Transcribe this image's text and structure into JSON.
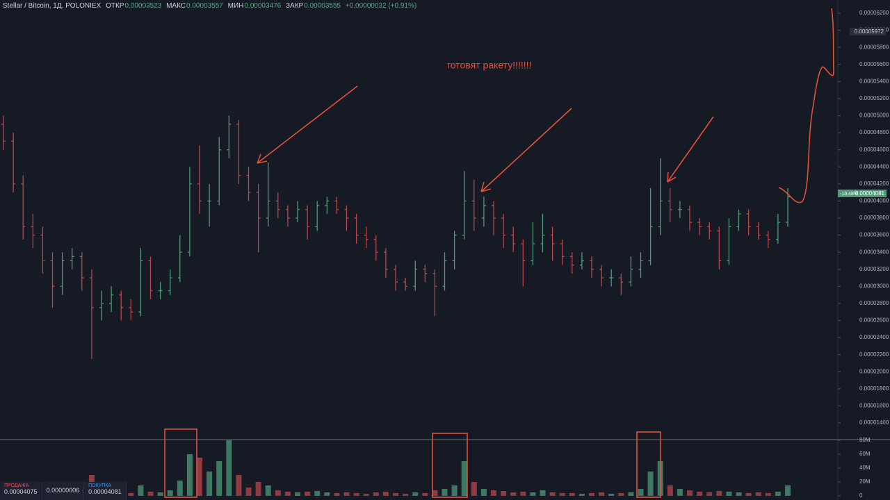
{
  "chart_data": [
    {
      "type": "ohlc",
      "title": "Stellar / Bitcoin, 1Д, POLONIEX",
      "ohlc_header": [
        {
          "label": "ОТКР",
          "value": "0.00003523"
        },
        {
          "label": "МАКС",
          "value": "0.00003557"
        },
        {
          "label": "МИН",
          "value": "0.00003476"
        },
        {
          "label": "ЗАКР",
          "value": "0.00003555"
        }
      ],
      "change": "+0.00000032 (+0.91%)",
      "annotation": "готовят ракету!!!!!!!",
      "crosshair_label": "0.00005972",
      "last_change": "-13.48%",
      "last_price": "0.00004081",
      "up_color": "#4f9a78",
      "down_color": "#b8474d",
      "grid": false,
      "ylim": [
        1.213e-05,
        6.355e-05
      ],
      "yticks": [
        {
          "value": 1.4e-05,
          "label": "0.00001400"
        },
        {
          "value": 1.6e-05,
          "label": "0.00001600"
        },
        {
          "value": 1.8e-05,
          "label": "0.00001800"
        },
        {
          "value": 2e-05,
          "label": "0.00002000"
        },
        {
          "value": 2.2e-05,
          "label": "0.00002200"
        },
        {
          "value": 2.4e-05,
          "label": "0.00002400"
        },
        {
          "value": 2.6e-05,
          "label": "0.00002600"
        },
        {
          "value": 2.8e-05,
          "label": "0.00002800"
        },
        {
          "value": 3e-05,
          "label": "0.00003000"
        },
        {
          "value": 3.2e-05,
          "label": "0.00003200"
        },
        {
          "value": 3.4e-05,
          "label": "0.00003400"
        },
        {
          "value": 3.6e-05,
          "label": "0.00003600"
        },
        {
          "value": 3.8e-05,
          "label": "0.00003800"
        },
        {
          "value": 4e-05,
          "label": "0.00004000"
        },
        {
          "value": 4.2e-05,
          "label": "0.00004200"
        },
        {
          "value": 4.4e-05,
          "label": "0.00004400"
        },
        {
          "value": 4.6e-05,
          "label": "0.00004600"
        },
        {
          "value": 4.8e-05,
          "label": "0.00004800"
        },
        {
          "value": 5e-05,
          "label": "0.00005000"
        },
        {
          "value": 5.2e-05,
          "label": "0.00005200"
        },
        {
          "value": 5.4e-05,
          "label": "0.00005400"
        },
        {
          "value": 5.6e-05,
          "label": "0.00005600"
        },
        {
          "value": 5.8e-05,
          "label": "0.00005800"
        },
        {
          "value": 6e-05,
          "label": "0.00006000"
        },
        {
          "value": 6.2e-05,
          "label": "0.00006200"
        }
      ],
      "ohlc": [
        [
          4.9e-05,
          5e-05,
          4.6e-05,
          4.7e-05
        ],
        [
          4.7e-05,
          4.8e-05,
          4.1e-05,
          4.2e-05
        ],
        [
          4.2e-05,
          4.3e-05,
          3.55e-05,
          3.7e-05
        ],
        [
          3.7e-05,
          3.85e-05,
          3.45e-05,
          3.6e-05
        ],
        [
          3.6e-05,
          3.7e-05,
          3.15e-05,
          3.3e-05
        ],
        [
          3.3e-05,
          3.4e-05,
          2.75e-05,
          3e-05
        ],
        [
          3e-05,
          3.4e-05,
          2.9e-05,
          3.3e-05
        ],
        [
          3.3e-05,
          3.45e-05,
          3.2e-05,
          3.35e-05
        ],
        [
          3.35e-05,
          3.4e-05,
          2.95e-05,
          3.1e-05
        ],
        [
          3.1e-05,
          3.2e-05,
          2.15e-05,
          2.75e-05
        ],
        [
          2.75e-05,
          2.95e-05,
          2.6e-05,
          2.8e-05
        ],
        [
          2.8e-05,
          3e-05,
          2.7e-05,
          2.9e-05
        ],
        [
          2.9e-05,
          2.95e-05,
          2.6e-05,
          2.75e-05
        ],
        [
          2.75e-05,
          2.85e-05,
          2.6e-05,
          2.7e-05
        ],
        [
          2.7e-05,
          3.45e-05,
          2.65e-05,
          3.3e-05
        ],
        [
          3.3e-05,
          3.35e-05,
          2.85e-05,
          2.95e-05
        ],
        [
          2.95e-05,
          3.05e-05,
          2.85e-05,
          2.95e-05
        ],
        [
          2.95e-05,
          3.2e-05,
          2.9e-05,
          3.1e-05
        ],
        [
          3.1e-05,
          3.6e-05,
          3.05e-05,
          3.4e-05
        ],
        [
          3.4e-05,
          4.4e-05,
          3.35e-05,
          4.2e-05
        ],
        [
          4.2e-05,
          4.65e-05,
          3.85e-05,
          4e-05
        ],
        [
          4e-05,
          4.2e-05,
          3.7e-05,
          4e-05
        ],
        [
          4e-05,
          4.75e-05,
          3.95e-05,
          4.6e-05
        ],
        [
          4.6e-05,
          5e-05,
          4.5e-05,
          4.9e-05
        ],
        [
          4.9e-05,
          4.95e-05,
          4.2e-05,
          4.3e-05
        ],
        [
          4.3e-05,
          4.4e-05,
          4e-05,
          4.1e-05
        ],
        [
          4.1e-05,
          4.2e-05,
          3.4e-05,
          3.8e-05
        ],
        [
          3.8e-05,
          4.45e-05,
          3.7e-05,
          4e-05
        ],
        [
          4e-05,
          4.1e-05,
          3.8e-05,
          3.9e-05
        ],
        [
          3.9e-05,
          3.95e-05,
          3.7e-05,
          3.8e-05
        ],
        [
          3.8e-05,
          4e-05,
          3.75e-05,
          3.9e-05
        ],
        [
          3.9e-05,
          3.95e-05,
          3.55e-05,
          3.7e-05
        ],
        [
          3.7e-05,
          4e-05,
          3.65e-05,
          3.95e-05
        ],
        [
          3.95e-05,
          4.05e-05,
          3.85e-05,
          4e-05
        ],
        [
          4e-05,
          4.05e-05,
          3.85e-05,
          3.9e-05
        ],
        [
          3.9e-05,
          3.95e-05,
          3.65e-05,
          3.8e-05
        ],
        [
          3.8e-05,
          3.85e-05,
          3.5e-05,
          3.6e-05
        ],
        [
          3.6e-05,
          3.7e-05,
          3.45e-05,
          3.55e-05
        ],
        [
          3.55e-05,
          3.6e-05,
          3.3e-05,
          3.4e-05
        ],
        [
          3.4e-05,
          3.45e-05,
          3.1e-05,
          3.2e-05
        ],
        [
          3.2e-05,
          3.25e-05,
          2.95e-05,
          3.05e-05
        ],
        [
          3.05e-05,
          3.1e-05,
          2.95e-05,
          3e-05
        ],
        [
          3e-05,
          3.3e-05,
          2.95e-05,
          3.2e-05
        ],
        [
          3.2e-05,
          3.25e-05,
          3.05e-05,
          3.15e-05
        ],
        [
          3.15e-05,
          3.2e-05,
          2.65e-05,
          3e-05
        ],
        [
          3e-05,
          3.4e-05,
          2.95e-05,
          3.3e-05
        ],
        [
          3.3e-05,
          3.65e-05,
          3.2e-05,
          3.6e-05
        ],
        [
          3.6e-05,
          4.35e-05,
          3.55e-05,
          4e-05
        ],
        [
          4e-05,
          4.25e-05,
          3.65e-05,
          3.8e-05
        ],
        [
          3.8e-05,
          4.05e-05,
          3.7e-05,
          3.95e-05
        ],
        [
          3.95e-05,
          4e-05,
          3.6e-05,
          3.8e-05
        ],
        [
          3.8e-05,
          3.85e-05,
          3.45e-05,
          3.6e-05
        ],
        [
          3.6e-05,
          3.7e-05,
          3.4e-05,
          3.5e-05
        ],
        [
          3.5e-05,
          3.55e-05,
          3e-05,
          3.3e-05
        ],
        [
          3.3e-05,
          3.75e-05,
          3.25e-05,
          3.5e-05
        ],
        [
          3.5e-05,
          3.85e-05,
          3.4e-05,
          3.6e-05
        ],
        [
          3.6e-05,
          3.7e-05,
          3.3e-05,
          3.5e-05
        ],
        [
          3.5e-05,
          3.55e-05,
          3.25e-05,
          3.35e-05
        ],
        [
          3.35e-05,
          3.4e-05,
          3.15e-05,
          3.25e-05
        ],
        [
          3.25e-05,
          3.4e-05,
          3.2e-05,
          3.3e-05
        ],
        [
          3.3e-05,
          3.35e-05,
          3.1e-05,
          3.2e-05
        ],
        [
          3.2e-05,
          3.25e-05,
          3e-05,
          3.1e-05
        ],
        [
          3.1e-05,
          3.2e-05,
          3e-05,
          3.1e-05
        ],
        [
          3.1e-05,
          3.15e-05,
          2.9e-05,
          3.05e-05
        ],
        [
          3.05e-05,
          3.35e-05,
          3e-05,
          3.2e-05
        ],
        [
          3.2e-05,
          3.4e-05,
          3.1e-05,
          3.3e-05
        ],
        [
          3.3e-05,
          4.15e-05,
          3.25e-05,
          3.7e-05
        ],
        [
          3.7e-05,
          4.5e-05,
          3.6e-05,
          4e-05
        ],
        [
          4e-05,
          4.15e-05,
          3.75e-05,
          3.9e-05
        ],
        [
          3.9e-05,
          4e-05,
          3.8e-05,
          3.9e-05
        ],
        [
          3.9e-05,
          3.95e-05,
          3.65e-05,
          3.75e-05
        ],
        [
          3.75e-05,
          3.8e-05,
          3.6e-05,
          3.7e-05
        ],
        [
          3.7e-05,
          3.75e-05,
          3.55e-05,
          3.65e-05
        ],
        [
          3.65e-05,
          3.7e-05,
          3.2e-05,
          3.3e-05
        ],
        [
          3.3e-05,
          3.8e-05,
          3.25e-05,
          3.7e-05
        ],
        [
          3.7e-05,
          3.9e-05,
          3.65e-05,
          3.85e-05
        ],
        [
          3.85e-05,
          3.9e-05,
          3.6e-05,
          3.7e-05
        ],
        [
          3.7e-05,
          3.75e-05,
          3.55e-05,
          3.6e-05
        ],
        [
          3.6e-05,
          3.65e-05,
          3.45e-05,
          3.55e-05
        ],
        [
          3.55e-05,
          3.85e-05,
          3.5e-05,
          3.75e-05
        ],
        [
          3.75e-05,
          4.15e-05,
          3.7e-05,
          4.05e-05
        ]
      ]
    },
    {
      "type": "bar",
      "ylim": [
        0,
        80000000
      ],
      "yticks": [
        {
          "value": 0,
          "label": "0"
        },
        {
          "value": 20000000,
          "label": "20M"
        },
        {
          "value": 40000000,
          "label": "40M"
        },
        {
          "value": 60000000,
          "label": "60M"
        },
        {
          "value": 80000000,
          "label": "80M"
        }
      ],
      "values": [
        8000000,
        5000000,
        4000000,
        6000000,
        5000000,
        3000000,
        4000000,
        3000000,
        5000000,
        30000000,
        12000000,
        6000000,
        5000000,
        4000000,
        15000000,
        6000000,
        5000000,
        8000000,
        22000000,
        60000000,
        55000000,
        35000000,
        50000000,
        80000000,
        30000000,
        12000000,
        20000000,
        15000000,
        8000000,
        6000000,
        5000000,
        6000000,
        7000000,
        5000000,
        4000000,
        5000000,
        4000000,
        3000000,
        5000000,
        6000000,
        4000000,
        3000000,
        5000000,
        4000000,
        8000000,
        10000000,
        15000000,
        50000000,
        20000000,
        10000000,
        8000000,
        7000000,
        5000000,
        6000000,
        5000000,
        8000000,
        5000000,
        4000000,
        4000000,
        3000000,
        4000000,
        5000000,
        3000000,
        4000000,
        5000000,
        10000000,
        35000000,
        50000000,
        15000000,
        10000000,
        8000000,
        6000000,
        5000000,
        7000000,
        6000000,
        5000000,
        4000000,
        5000000,
        4000000,
        6000000,
        15000000
      ]
    }
  ],
  "trade_panel": {
    "sell_label": "ПРОДАЖА",
    "sell_price": "0.00004075",
    "spread": "0.00000006",
    "buy_label": "ПОКУПКА",
    "buy_price": "0.00004081"
  }
}
